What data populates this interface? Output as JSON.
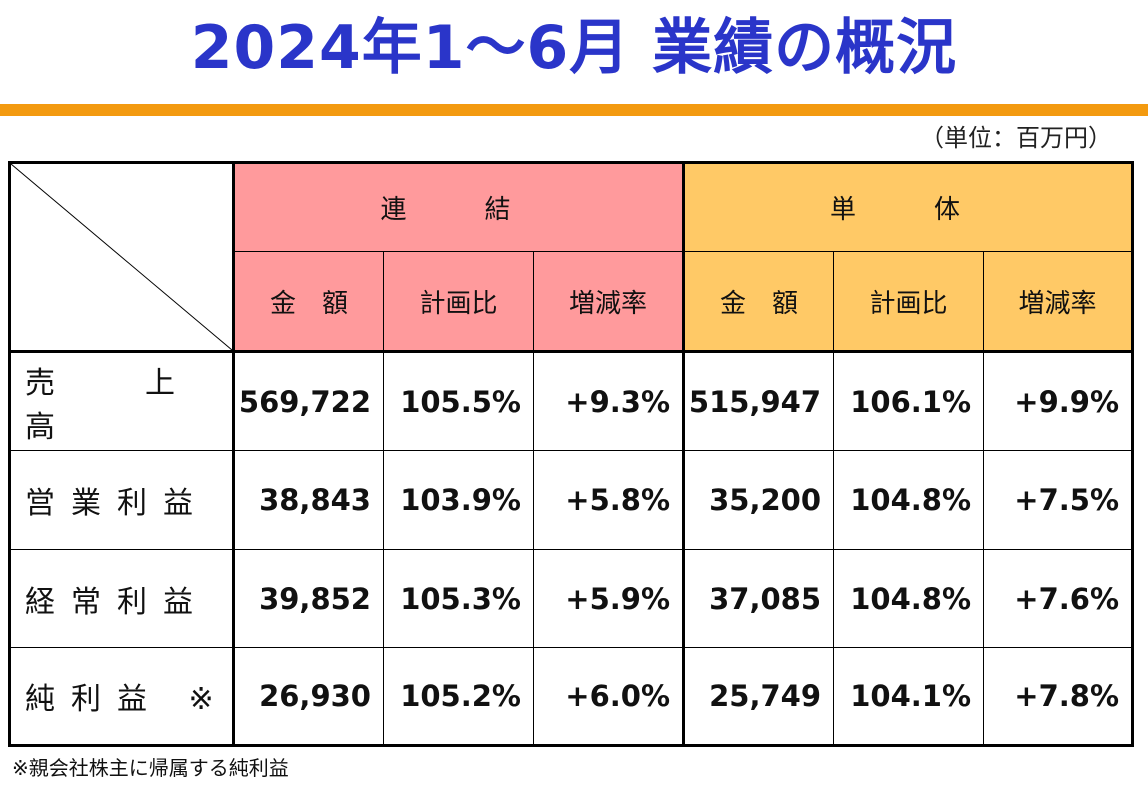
{
  "title": "2024年1～6月 業績の概況",
  "unit_note": "（単位：百万円）",
  "table": {
    "groups": [
      {
        "label": "連　結",
        "color": "#ff9a9c"
      },
      {
        "label": "単　体",
        "color": "#ffc966"
      }
    ],
    "subheaders": [
      "金　額",
      "計画比",
      "増減率",
      "金　額",
      "計画比",
      "増減率"
    ],
    "rows": [
      {
        "label": "売　上　高",
        "cells": [
          "569,722",
          "105.5%",
          "+9.3%",
          "515,947",
          "106.1%",
          "+9.9%"
        ]
      },
      {
        "label": "営業利益",
        "cells": [
          "38,843",
          "103.9%",
          "+5.8%",
          "35,200",
          "104.8%",
          "+7.5%"
        ]
      },
      {
        "label": "経常利益",
        "cells": [
          "39,852",
          "105.3%",
          "+5.9%",
          "37,085",
          "104.8%",
          "+7.6%"
        ]
      },
      {
        "label": "純利益 ※",
        "cells": [
          "26,930",
          "105.2%",
          "+6.0%",
          "25,749",
          "104.1%",
          "+7.8%"
        ]
      }
    ]
  },
  "footnote": "※親会社株主に帰属する純利益"
}
